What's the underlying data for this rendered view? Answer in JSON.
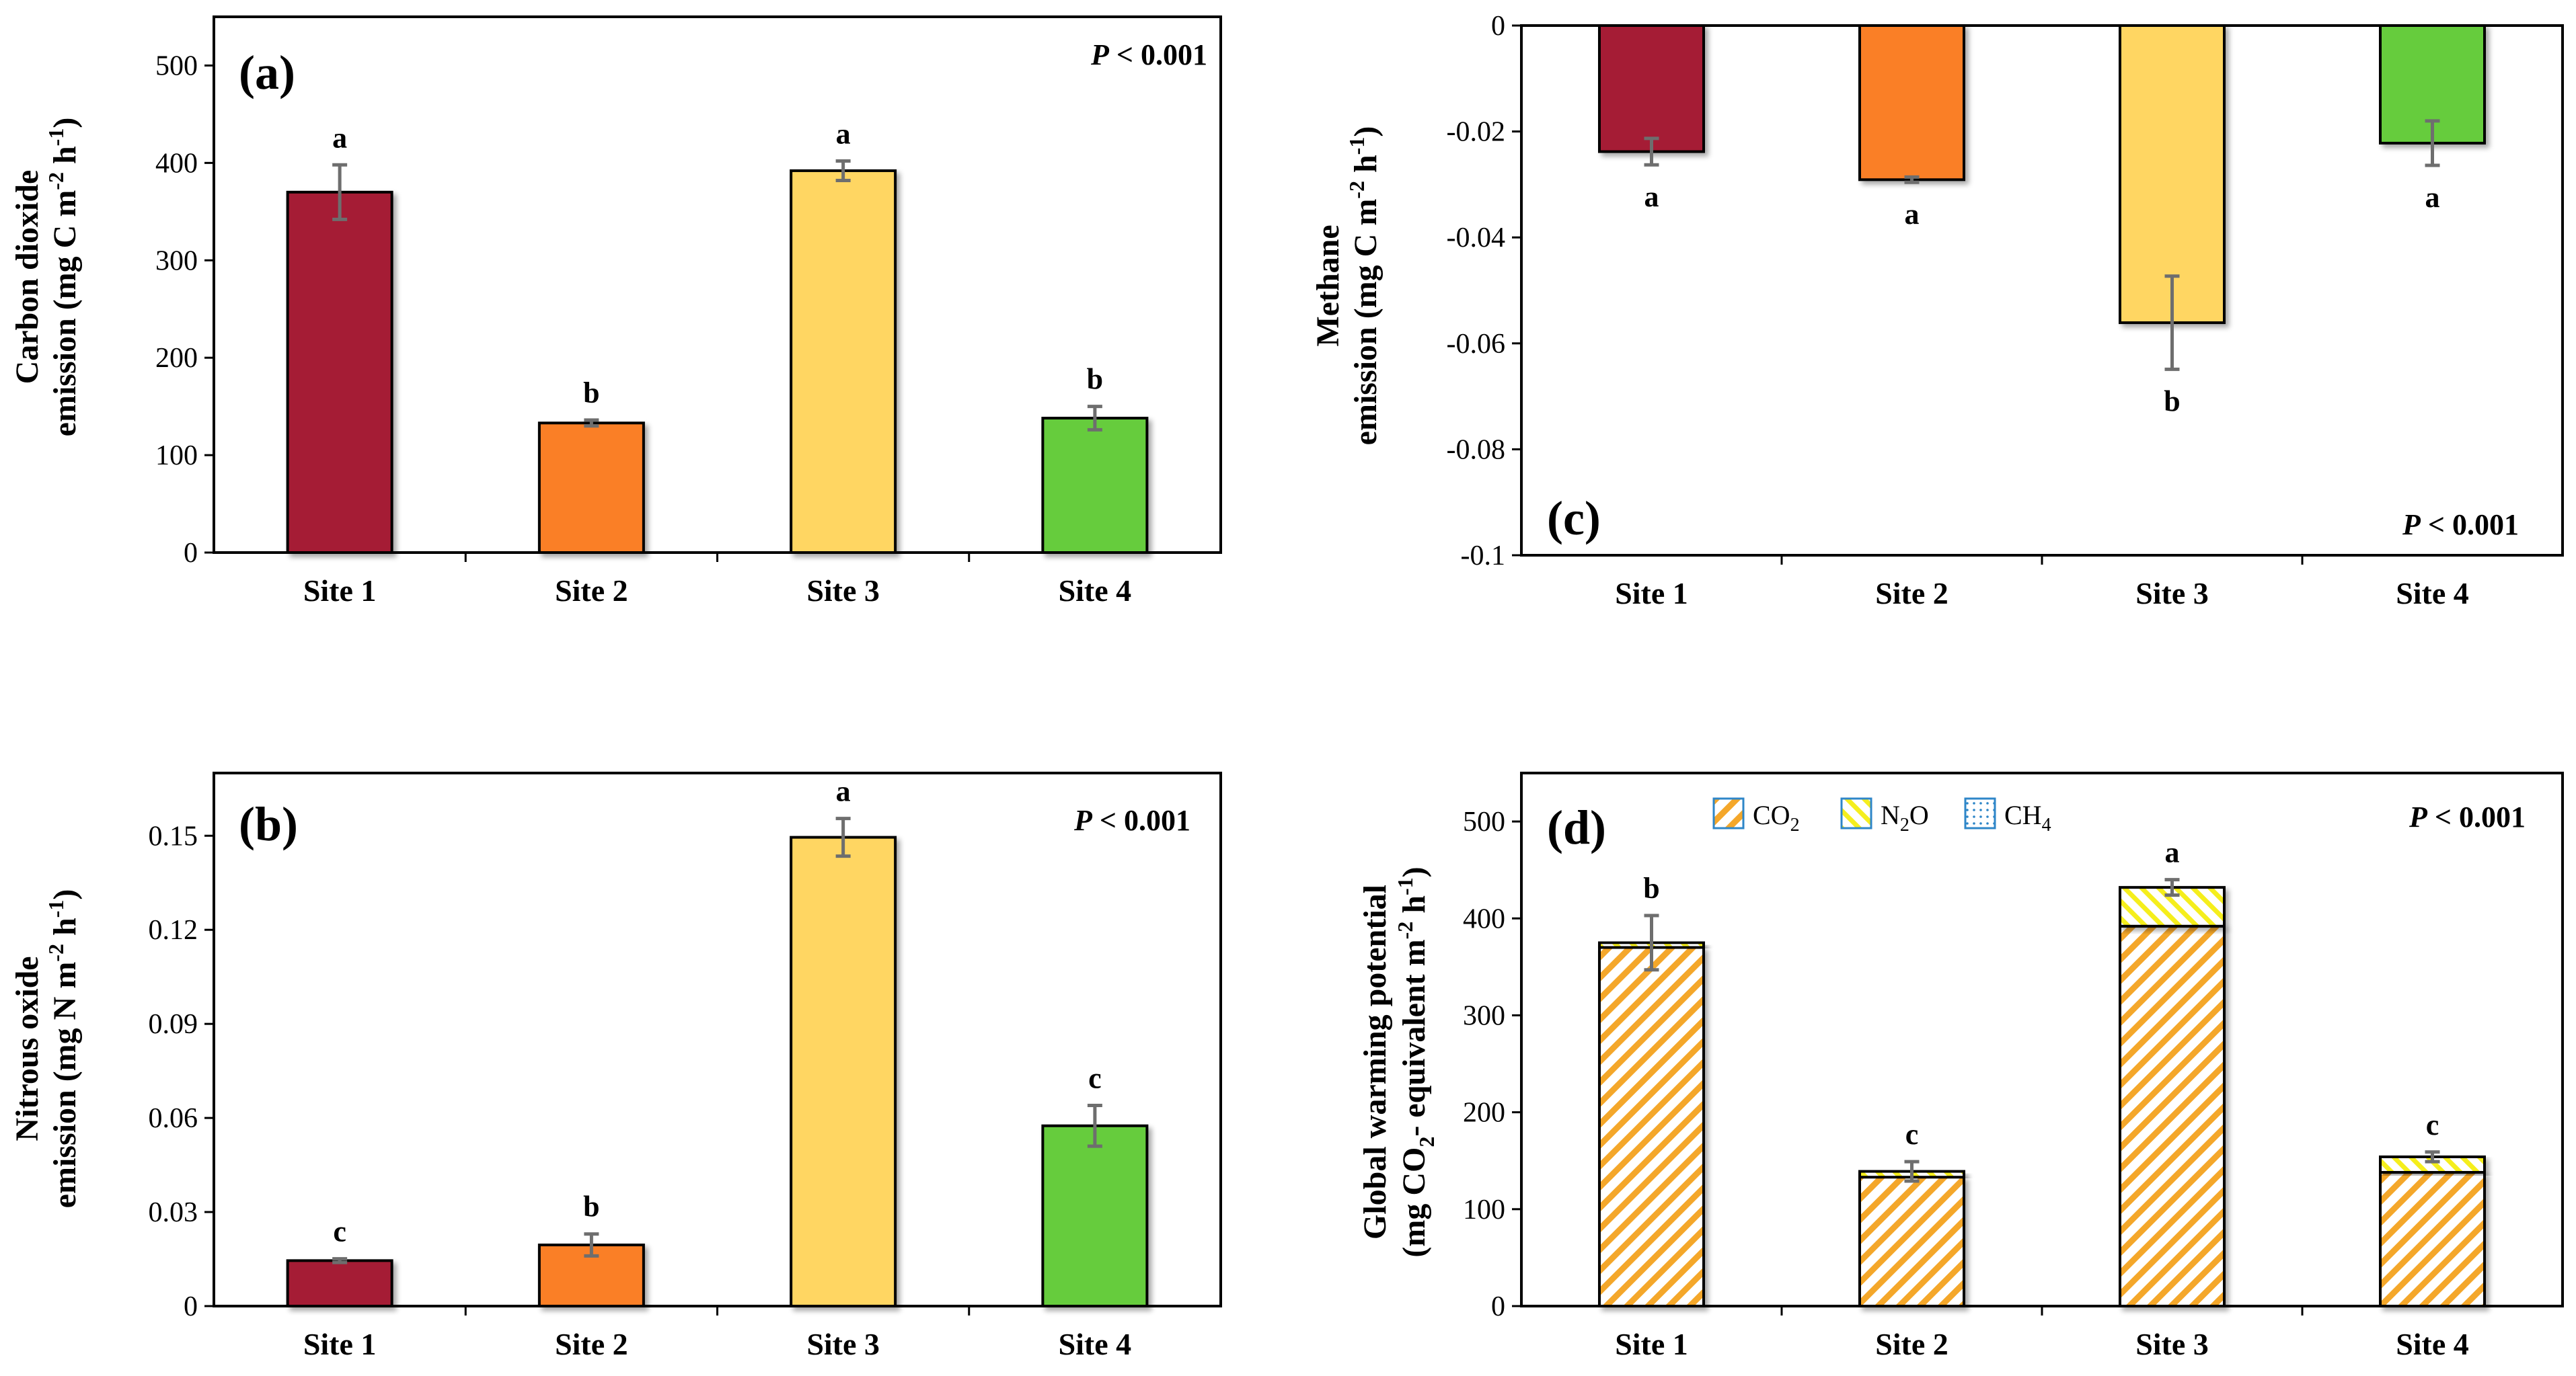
{
  "chart_data": [
    {
      "id": "a",
      "type": "bar",
      "panel_label": "(a)",
      "categories": [
        "Site 1",
        "Site 2",
        "Site 3",
        "Site 4"
      ],
      "values": [
        370,
        133,
        392,
        138
      ],
      "errors": [
        28,
        3,
        10,
        12
      ],
      "significance": [
        "a",
        "b",
        "a",
        "b"
      ],
      "colors": [
        "#A51E36",
        "#FA7F25",
        "#FFD662",
        "#66CC3E"
      ],
      "ylabel_lines": [
        "Carbon dioxide",
        "emission (mg C m",
        "-2",
        " h",
        "-1",
        ")"
      ],
      "ylim": [
        0,
        550
      ],
      "yticks": [
        0,
        100,
        200,
        300,
        400,
        500
      ],
      "ytick_labels": [
        "0",
        "100",
        "200",
        "300",
        "400",
        "500"
      ],
      "p_value": {
        "label": "P",
        "rest": " < 0.001"
      }
    },
    {
      "id": "b",
      "type": "bar",
      "panel_label": "(b)",
      "categories": [
        "Site 1",
        "Site 2",
        "Site 3",
        "Site 4"
      ],
      "values": [
        0.0145,
        0.0195,
        0.1495,
        0.0575
      ],
      "errors": [
        0.0006,
        0.0035,
        0.006,
        0.0065
      ],
      "significance": [
        "c",
        "b",
        "a",
        "c"
      ],
      "colors": [
        "#A51E36",
        "#FA7F25",
        "#FFD662",
        "#66CC3E"
      ],
      "ylabel_lines": [
        "Nitrous oxide",
        "emission (mg N m",
        "-2",
        " h",
        "-1",
        ")"
      ],
      "ylim": [
        0,
        0.17
      ],
      "yticks": [
        0,
        0.03,
        0.06,
        0.09,
        0.12,
        0.15
      ],
      "ytick_labels": [
        "0",
        "0.03",
        "0.06",
        "0.09",
        "0.12",
        "0.15"
      ],
      "p_value": {
        "label": "P",
        "rest": " < 0.001"
      }
    },
    {
      "id": "c",
      "type": "bar",
      "panel_label": "(c)",
      "categories": [
        "Site 1",
        "Site 2",
        "Site 3",
        "Site 4"
      ],
      "values": [
        -0.0238,
        -0.0291,
        -0.0561,
        -0.0222
      ],
      "errors": [
        0.0025,
        0.0005,
        0.0088,
        0.0042
      ],
      "significance": [
        "a",
        "a",
        "b",
        "a"
      ],
      "colors": [
        "#A51E36",
        "#FA7F25",
        "#FFD662",
        "#66CC3E"
      ],
      "ylabel_lines": [
        "Methane",
        "emission (mg C m",
        "-2",
        " h",
        "-1",
        ")"
      ],
      "ylim": [
        -0.1,
        0
      ],
      "yticks": [
        0,
        -0.02,
        -0.04,
        -0.06,
        -0.08,
        -0.1
      ],
      "ytick_labels": [
        "0",
        "-0.02",
        "-0.04",
        "-0.06",
        "-0.08",
        "-0.1"
      ],
      "p_value": {
        "label": "P",
        "rest": " < 0.001"
      }
    },
    {
      "id": "d",
      "type": "bar",
      "stacked": true,
      "panel_label": "(d)",
      "categories": [
        "Site 1",
        "Site 2",
        "Site 3",
        "Site 4"
      ],
      "series": [
        {
          "name": "CO2",
          "sub": "2",
          "values": [
            370,
            133,
            392,
            138
          ]
        },
        {
          "name": "N2O",
          "sub": "2",
          "values": [
            5,
            6,
            40,
            16
          ]
        },
        {
          "name": "CH4",
          "sub": "4",
          "values": [
            0,
            0,
            0,
            0
          ]
        }
      ],
      "errors": [
        28,
        10,
        8,
        5
      ],
      "significance": [
        "b",
        "c",
        "a",
        "c"
      ],
      "legend_labels": [
        [
          "CO",
          "2",
          ""
        ],
        [
          "N",
          "2",
          "O"
        ],
        [
          "CH",
          "4",
          ""
        ]
      ],
      "ylabel_lines": [
        "Global warming potential",
        "(mg CO",
        "2",
        "- equivalent m",
        "-2",
        " h",
        "-1",
        ")"
      ],
      "ylim": [
        0,
        550
      ],
      "yticks": [
        0,
        100,
        200,
        300,
        400,
        500
      ],
      "ytick_labels": [
        "0",
        "100",
        "200",
        "300",
        "400",
        "500"
      ],
      "p_value": {
        "label": "P",
        "rest": " < 0.001"
      }
    }
  ],
  "colors": {
    "axis": "#000000",
    "error_bar": "#6E6E6E",
    "hatch_co2": "#F4A72A",
    "hatch_n2o": "#F5EE1E",
    "hatch_ch4": "#2E86C8"
  }
}
